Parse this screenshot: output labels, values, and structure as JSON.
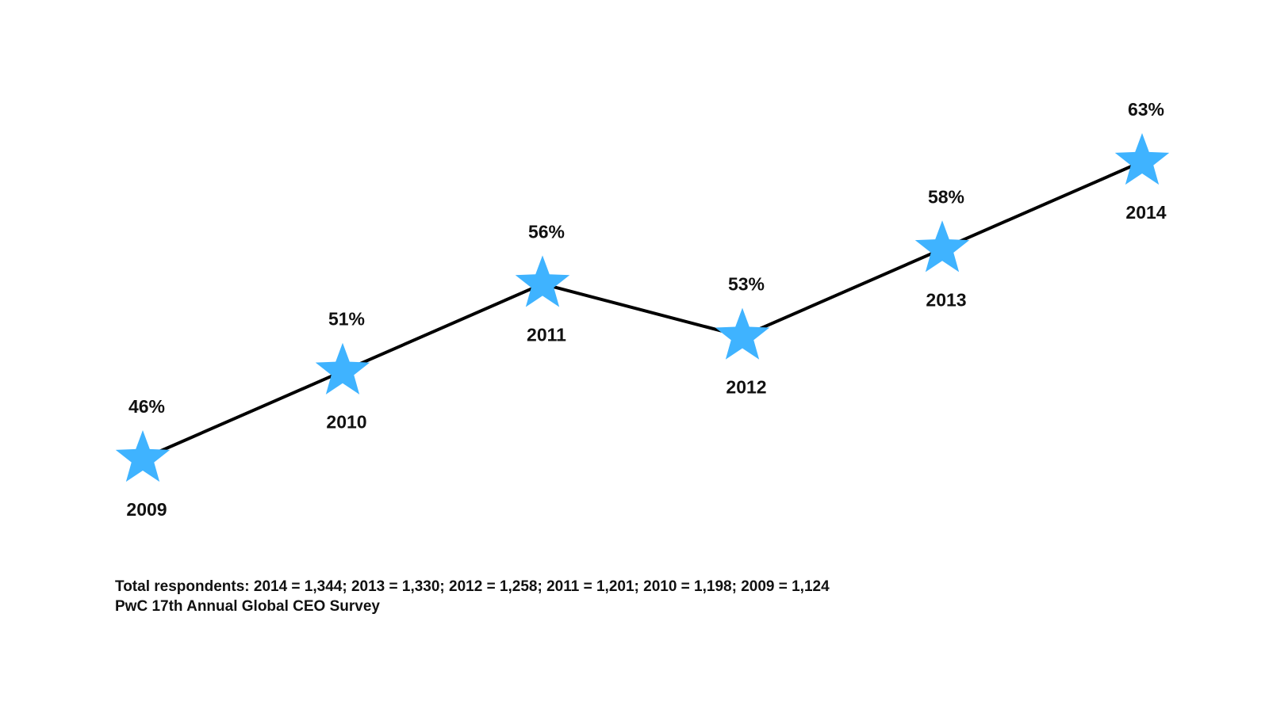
{
  "chart_data": {
    "type": "line",
    "x": [
      "2009",
      "2010",
      "2011",
      "2012",
      "2013",
      "2014"
    ],
    "values": [
      46,
      51,
      56,
      53,
      58,
      63
    ],
    "value_labels": [
      "46%",
      "51%",
      "56%",
      "53%",
      "58%",
      "63%"
    ],
    "unit": "%",
    "marker": "star",
    "line_color": "#000000",
    "marker_color": "#3FB3FF",
    "grid": false,
    "axes_visible": false,
    "legend": "none"
  },
  "footnote": {
    "respondents": "Total respondents: 2014 = 1,344; 2013 = 1,330; 2012 = 1,258; 2011 = 1,201; 2010 = 1,198; 2009 = 1,124",
    "source": "PwC 17th Annual Global CEO Survey"
  }
}
